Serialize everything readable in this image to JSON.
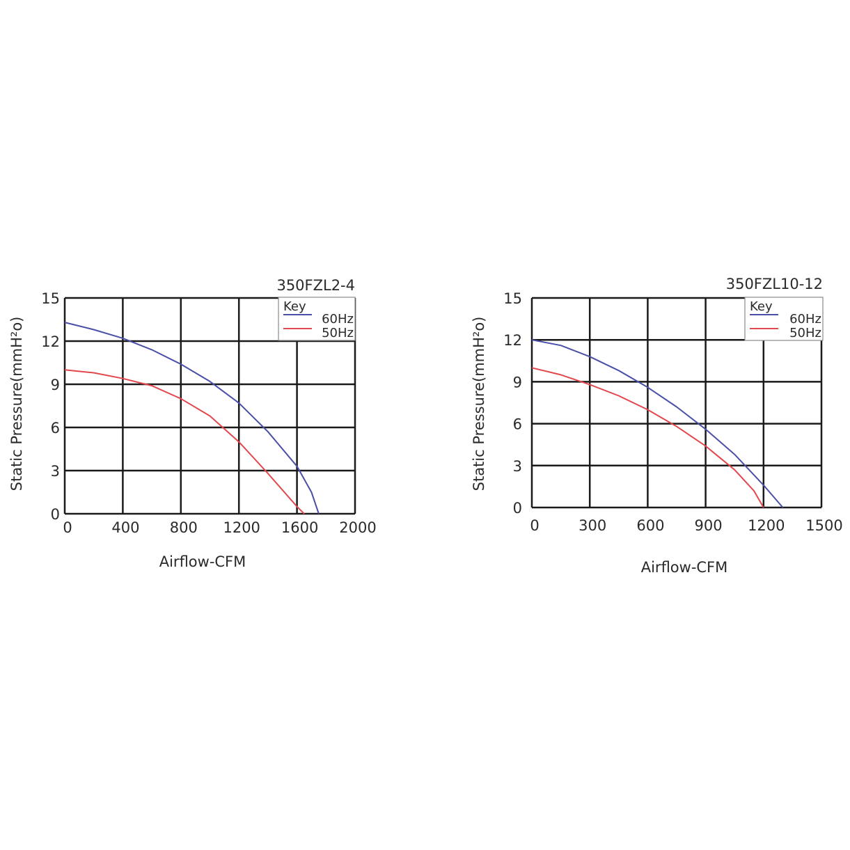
{
  "chart_data": [
    {
      "type": "line",
      "title": "350FZL2-4",
      "xlabel": "Airflow-CFM",
      "ylabel": "Static Pressure(mmH²o)",
      "xlim": [
        0,
        2000
      ],
      "ylim": [
        0,
        15
      ],
      "xticks": [
        "0",
        "400",
        "800",
        "1200",
        "1600",
        "2000"
      ],
      "yticks": [
        "15",
        "12",
        "9",
        "6",
        "3",
        "0"
      ],
      "grid": true,
      "legend": {
        "title": "Key",
        "placement": "top-right"
      },
      "colors": {
        "60Hz": "#4a4fa8",
        "50Hz": "#e2474d"
      },
      "series": [
        {
          "name": "60Hz",
          "x": [
            0,
            200,
            400,
            600,
            800,
            1000,
            1200,
            1400,
            1600,
            1700,
            1750
          ],
          "y": [
            13.3,
            12.8,
            12.2,
            11.4,
            10.4,
            9.2,
            7.7,
            5.7,
            3.3,
            1.5,
            0
          ]
        },
        {
          "name": "50Hz",
          "x": [
            0,
            200,
            400,
            600,
            800,
            1000,
            1200,
            1400,
            1600,
            1650
          ],
          "y": [
            10.0,
            9.8,
            9.4,
            8.9,
            8.0,
            6.8,
            5.0,
            2.8,
            0.5,
            0
          ]
        }
      ]
    },
    {
      "type": "line",
      "title": "350FZL10-12",
      "xlabel": "Airflow-CFM",
      "ylabel": "Static Pressure(mmH²o)",
      "xlim": [
        0,
        1500
      ],
      "ylim": [
        0,
        15
      ],
      "xticks": [
        "0",
        "300",
        "600",
        "900",
        "1200",
        "1500"
      ],
      "yticks": [
        "15",
        "12",
        "9",
        "6",
        "3",
        "0"
      ],
      "grid": true,
      "legend": {
        "title": "Key",
        "placement": "top-right"
      },
      "colors": {
        "60Hz": "#4a4fa8",
        "50Hz": "#e2474d"
      },
      "series": [
        {
          "name": "60Hz",
          "x": [
            0,
            150,
            300,
            450,
            600,
            750,
            900,
            1050,
            1200,
            1300
          ],
          "y": [
            12.0,
            11.6,
            10.8,
            9.8,
            8.6,
            7.2,
            5.6,
            3.8,
            1.6,
            0
          ]
        },
        {
          "name": "50Hz",
          "x": [
            0,
            150,
            300,
            450,
            600,
            750,
            900,
            1050,
            1150,
            1200
          ],
          "y": [
            10.0,
            9.5,
            8.8,
            8.0,
            7.0,
            5.8,
            4.4,
            2.7,
            1.2,
            0
          ]
        }
      ]
    }
  ]
}
